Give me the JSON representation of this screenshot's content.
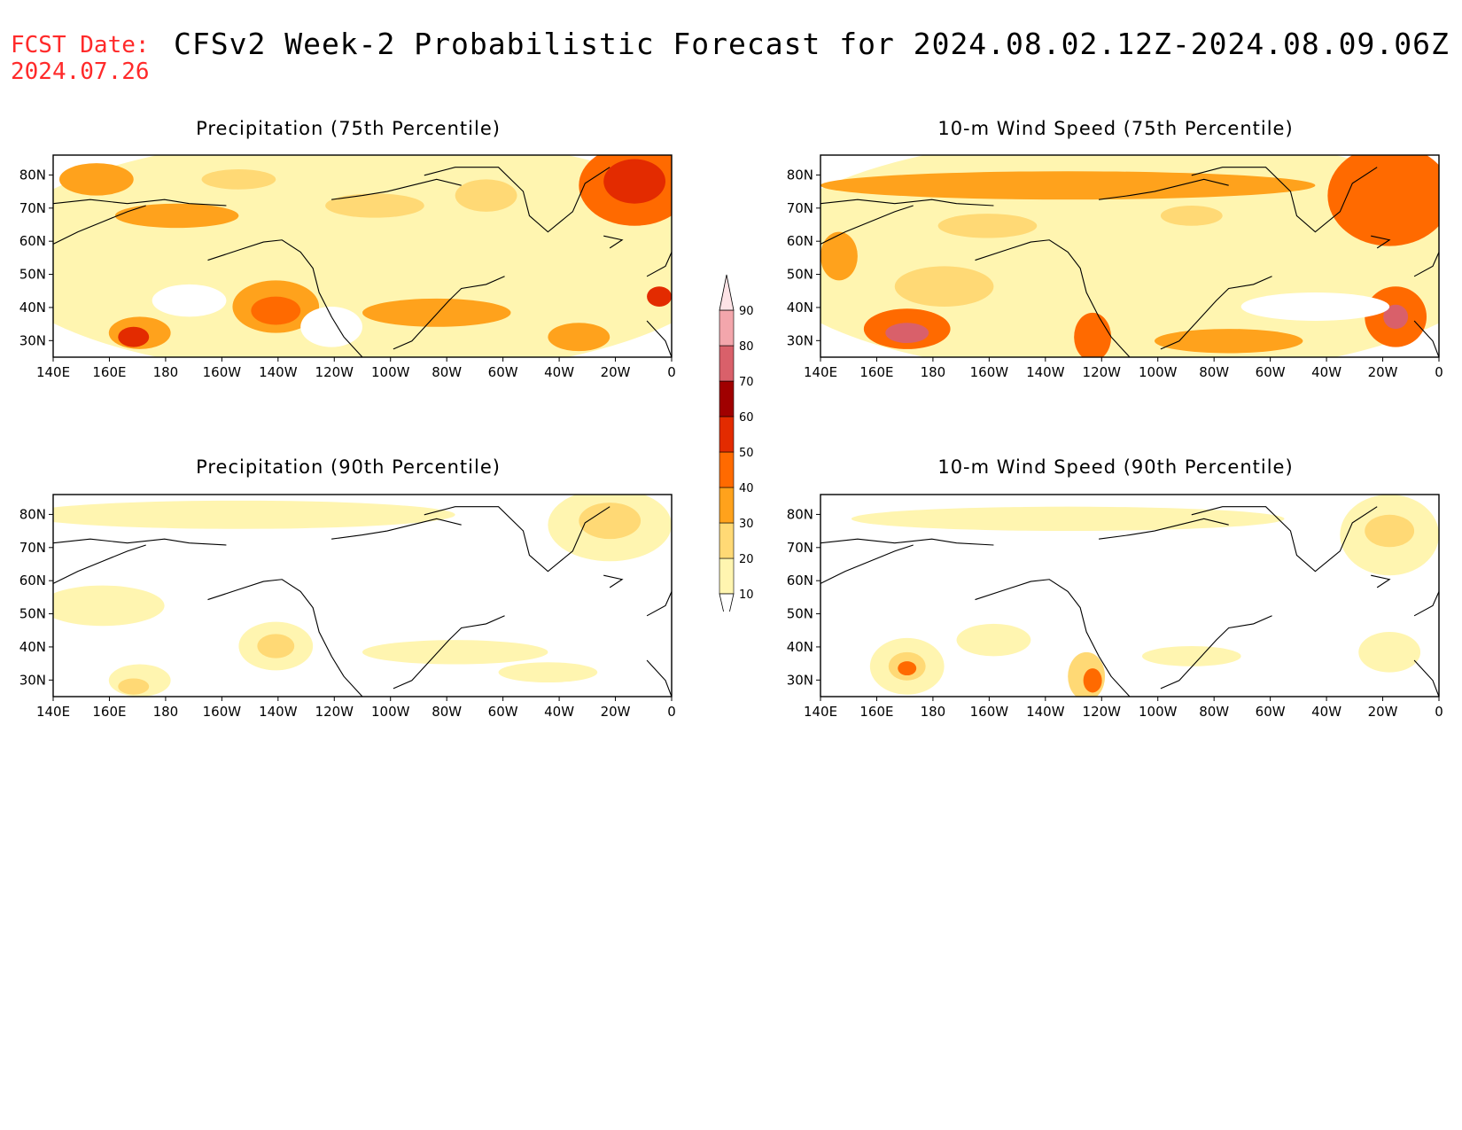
{
  "header": {
    "fcst_label": "FCST Date:",
    "fcst_date": "2024.07.26",
    "title": "CFSv2 Week-2 Probabilistic Forecast for 2024.08.02.12Z-2024.08.09.06Z"
  },
  "panels": [
    {
      "title": "Precipitation (75th Percentile)"
    },
    {
      "title": "10-m Wind Speed (75th Percentile)"
    },
    {
      "title": "Precipitation (90th Percentile)"
    },
    {
      "title": "10-m Wind Speed (90th Percentile)"
    }
  ],
  "axes": {
    "lon_labels": [
      "140E",
      "160E",
      "180",
      "160W",
      "140W",
      "120W",
      "100W",
      "80W",
      "60W",
      "40W",
      "20W",
      "0"
    ],
    "lat_labels": [
      "80N",
      "70N",
      "60N",
      "50N",
      "40N",
      "30N"
    ]
  },
  "legend": {
    "levels": [
      "10",
      "20",
      "30",
      "40",
      "50",
      "60",
      "70",
      "80",
      "90"
    ],
    "colors": [
      "#ffffff",
      "#fff5b0",
      "#ffd975",
      "#ffa21c",
      "#ff6a00",
      "#e32b00",
      "#a00000",
      "#d9606a",
      "#f3a6ac",
      "#fde3e6"
    ]
  }
}
